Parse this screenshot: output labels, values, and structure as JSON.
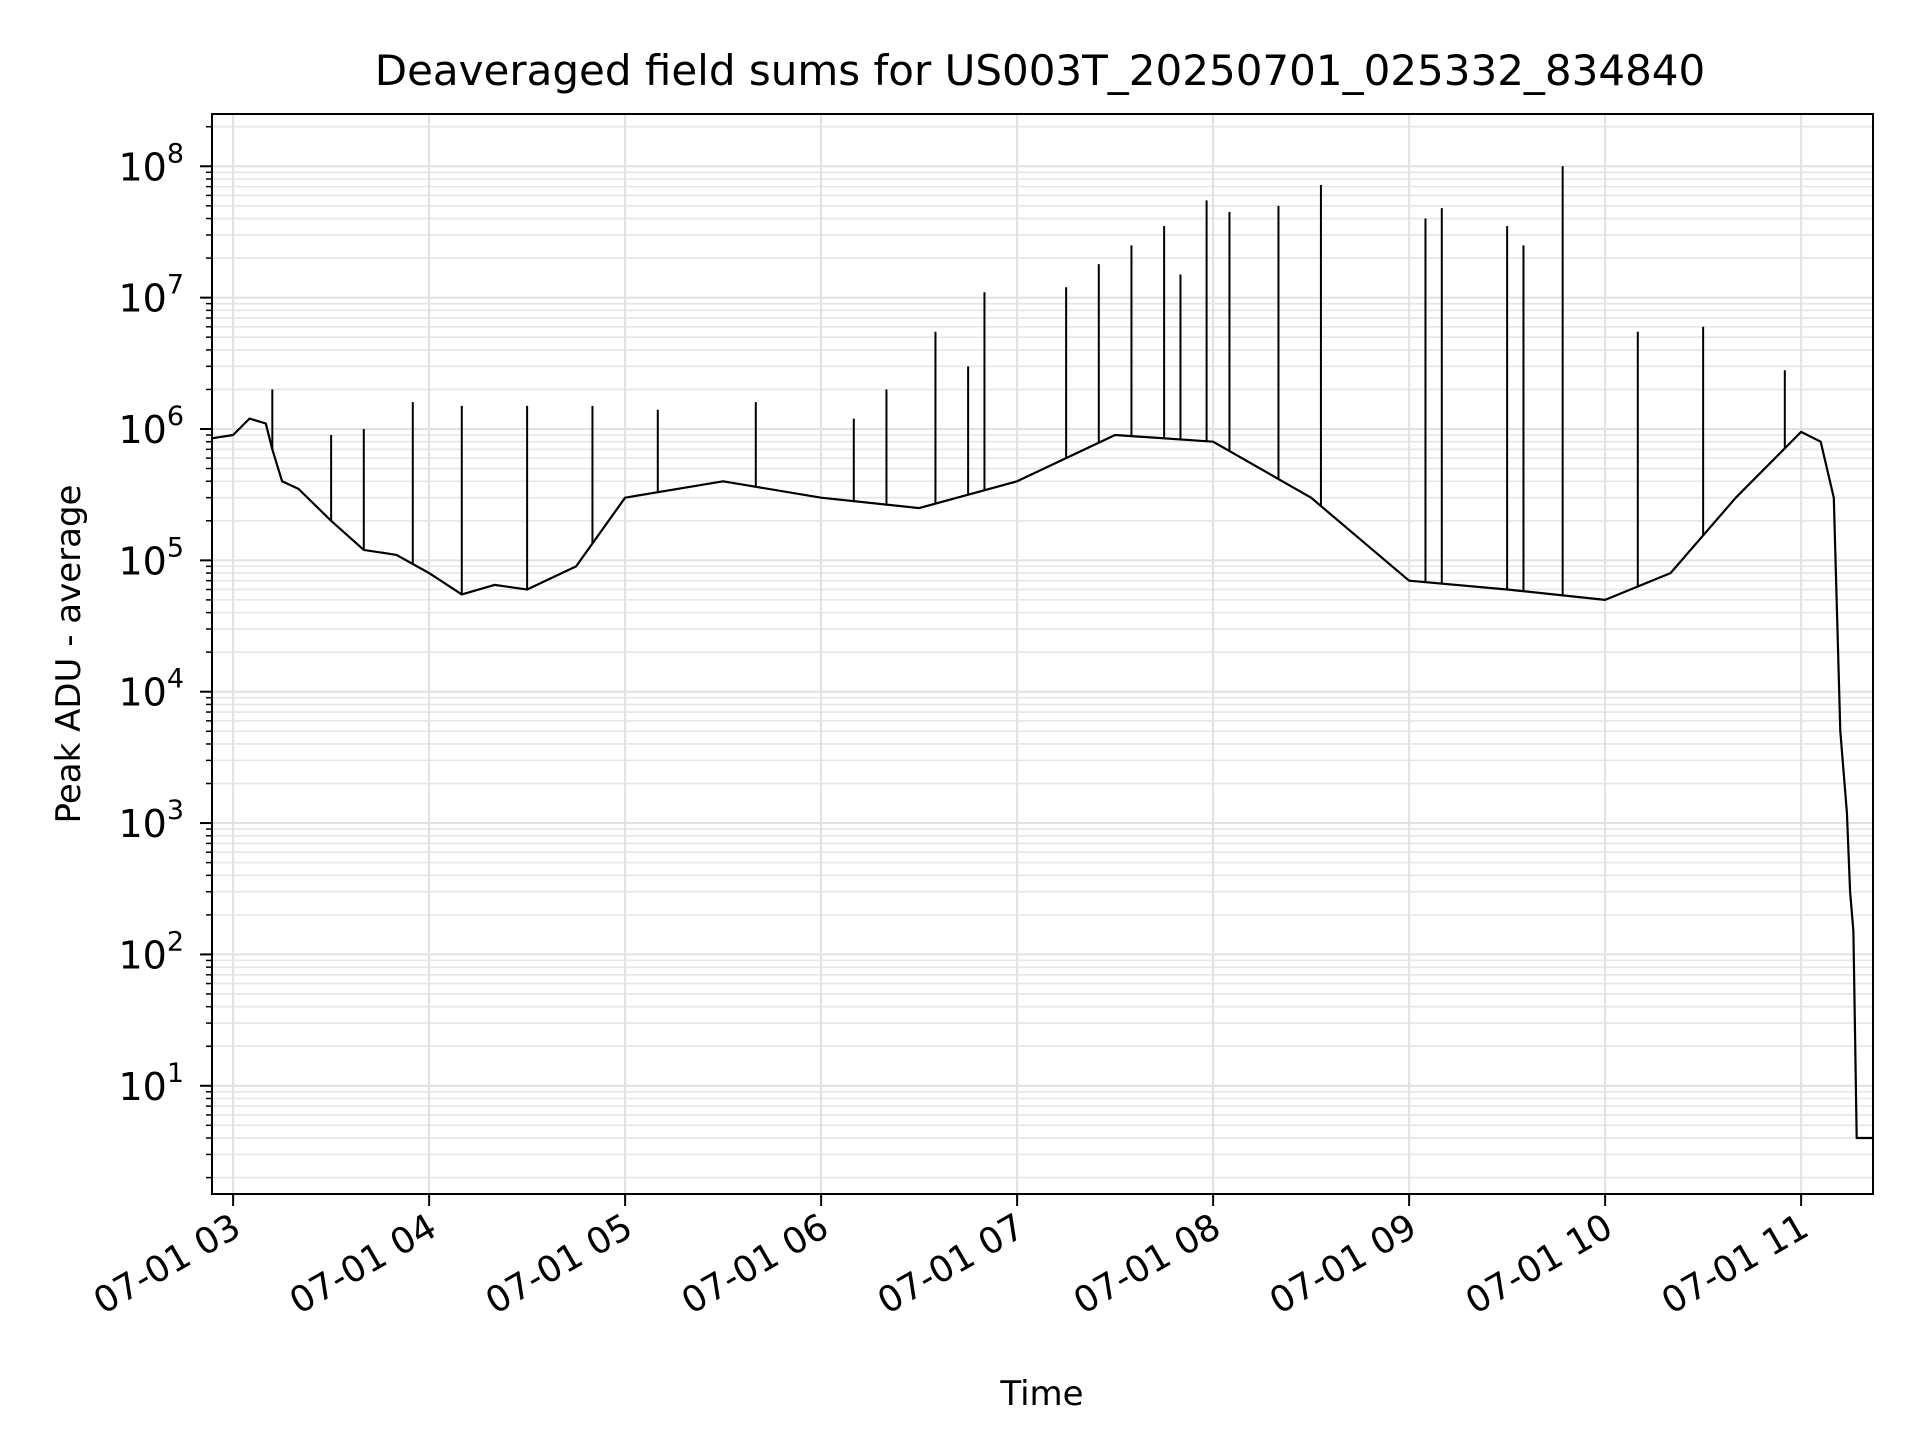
{
  "chart_data": {
    "type": "line",
    "title": "Deaveraged field sums for US003T_20250701_025332_834840",
    "xlabel": "Time",
    "ylabel": "Peak ADU - average",
    "y_scale": "log",
    "ylim": [
      1.5,
      250000000
    ],
    "xlim": [
      "2025-07-01T02:53:32",
      "2025-07-01T11:22:00"
    ],
    "grid": true,
    "legend": "none",
    "line_color": "#000000",
    "x_ticks": [
      {
        "value": "2025-07-01T03:00:00",
        "label": "07-01 03"
      },
      {
        "value": "2025-07-01T04:00:00",
        "label": "07-01 04"
      },
      {
        "value": "2025-07-01T05:00:00",
        "label": "07-01 05"
      },
      {
        "value": "2025-07-01T06:00:00",
        "label": "07-01 06"
      },
      {
        "value": "2025-07-01T07:00:00",
        "label": "07-01 07"
      },
      {
        "value": "2025-07-01T08:00:00",
        "label": "07-01 08"
      },
      {
        "value": "2025-07-01T09:00:00",
        "label": "07-01 09"
      },
      {
        "value": "2025-07-01T10:00:00",
        "label": "07-01 10"
      },
      {
        "value": "2025-07-01T11:00:00",
        "label": "07-01 11"
      }
    ],
    "y_ticks": [
      {
        "value": 10,
        "base": "10",
        "exp": "1"
      },
      {
        "value": 100,
        "base": "10",
        "exp": "2"
      },
      {
        "value": 1000,
        "base": "10",
        "exp": "3"
      },
      {
        "value": 10000,
        "base": "10",
        "exp": "4"
      },
      {
        "value": 100000,
        "base": "10",
        "exp": "5"
      },
      {
        "value": 1000000,
        "base": "10",
        "exp": "6"
      },
      {
        "value": 10000000,
        "base": "10",
        "exp": "7"
      },
      {
        "value": 100000000,
        "base": "10",
        "exp": "8"
      }
    ],
    "series": [
      {
        "x": [
          "2025-07-01T02:53:32",
          "2025-07-01T03:00:00",
          "2025-07-01T03:05:00",
          "2025-07-01T03:10:00",
          "2025-07-01T03:12:00",
          "2025-07-01T03:15:00",
          "2025-07-01T03:20:00",
          "2025-07-01T03:30:00",
          "2025-07-01T03:40:00",
          "2025-07-01T03:50:00",
          "2025-07-01T04:00:00",
          "2025-07-01T04:10:00",
          "2025-07-01T04:20:00",
          "2025-07-01T04:30:00",
          "2025-07-01T04:45:00",
          "2025-07-01T05:00:00",
          "2025-07-01T05:30:00",
          "2025-07-01T06:00:00",
          "2025-07-01T06:30:00",
          "2025-07-01T07:00:00",
          "2025-07-01T07:30:00",
          "2025-07-01T08:00:00",
          "2025-07-01T08:30:00",
          "2025-07-01T09:00:00",
          "2025-07-01T09:30:00",
          "2025-07-01T10:00:00",
          "2025-07-01T10:20:00",
          "2025-07-01T10:40:00",
          "2025-07-01T11:00:00",
          "2025-07-01T11:06:00",
          "2025-07-01T11:10:00",
          "2025-07-01T11:12:00",
          "2025-07-01T11:14:00",
          "2025-07-01T11:15:00",
          "2025-07-01T11:16:00",
          "2025-07-01T11:17:00",
          "2025-07-01T11:22:00"
        ],
        "y": [
          850000,
          900000,
          1200000,
          1100000,
          700000,
          400000,
          350000,
          200000,
          120000,
          110000,
          80000,
          55000,
          65000,
          60000,
          90000,
          300000,
          400000,
          300000,
          250000,
          400000,
          900000,
          800000,
          300000,
          70000,
          60000,
          50000,
          80000,
          300000,
          950000,
          800000,
          300000,
          5000,
          1200,
          300,
          150,
          4,
          4
        ]
      }
    ],
    "spikes": [
      {
        "x": "2025-07-01T03:12:00",
        "y": 2000000
      },
      {
        "x": "2025-07-01T03:30:00",
        "y": 900000
      },
      {
        "x": "2025-07-01T03:40:00",
        "y": 1000000
      },
      {
        "x": "2025-07-01T03:55:00",
        "y": 1600000
      },
      {
        "x": "2025-07-01T04:10:00",
        "y": 1500000
      },
      {
        "x": "2025-07-01T04:30:00",
        "y": 1500000
      },
      {
        "x": "2025-07-01T04:50:00",
        "y": 1500000
      },
      {
        "x": "2025-07-01T05:10:00",
        "y": 1400000
      },
      {
        "x": "2025-07-01T05:40:00",
        "y": 1600000
      },
      {
        "x": "2025-07-01T06:10:00",
        "y": 1200000
      },
      {
        "x": "2025-07-01T06:20:00",
        "y": 2000000
      },
      {
        "x": "2025-07-01T06:35:00",
        "y": 5500000
      },
      {
        "x": "2025-07-01T06:45:00",
        "y": 3000000
      },
      {
        "x": "2025-07-01T06:50:00",
        "y": 11000000
      },
      {
        "x": "2025-07-01T07:15:00",
        "y": 12000000
      },
      {
        "x": "2025-07-01T07:25:00",
        "y": 18000000
      },
      {
        "x": "2025-07-01T07:35:00",
        "y": 25000000
      },
      {
        "x": "2025-07-01T07:45:00",
        "y": 35000000
      },
      {
        "x": "2025-07-01T07:50:00",
        "y": 15000000
      },
      {
        "x": "2025-07-01T07:58:00",
        "y": 55000000
      },
      {
        "x": "2025-07-01T08:05:00",
        "y": 45000000
      },
      {
        "x": "2025-07-01T08:20:00",
        "y": 50000000
      },
      {
        "x": "2025-07-01T08:33:00",
        "y": 72000000
      },
      {
        "x": "2025-07-01T09:05:00",
        "y": 40000000
      },
      {
        "x": "2025-07-01T09:10:00",
        "y": 48000000
      },
      {
        "x": "2025-07-01T09:30:00",
        "y": 35000000
      },
      {
        "x": "2025-07-01T09:35:00",
        "y": 25000000
      },
      {
        "x": "2025-07-01T09:47:00",
        "y": 100000000
      },
      {
        "x": "2025-07-01T10:10:00",
        "y": 5500000
      },
      {
        "x": "2025-07-01T10:30:00",
        "y": 6000000
      },
      {
        "x": "2025-07-01T10:55:00",
        "y": 2800000
      }
    ]
  }
}
